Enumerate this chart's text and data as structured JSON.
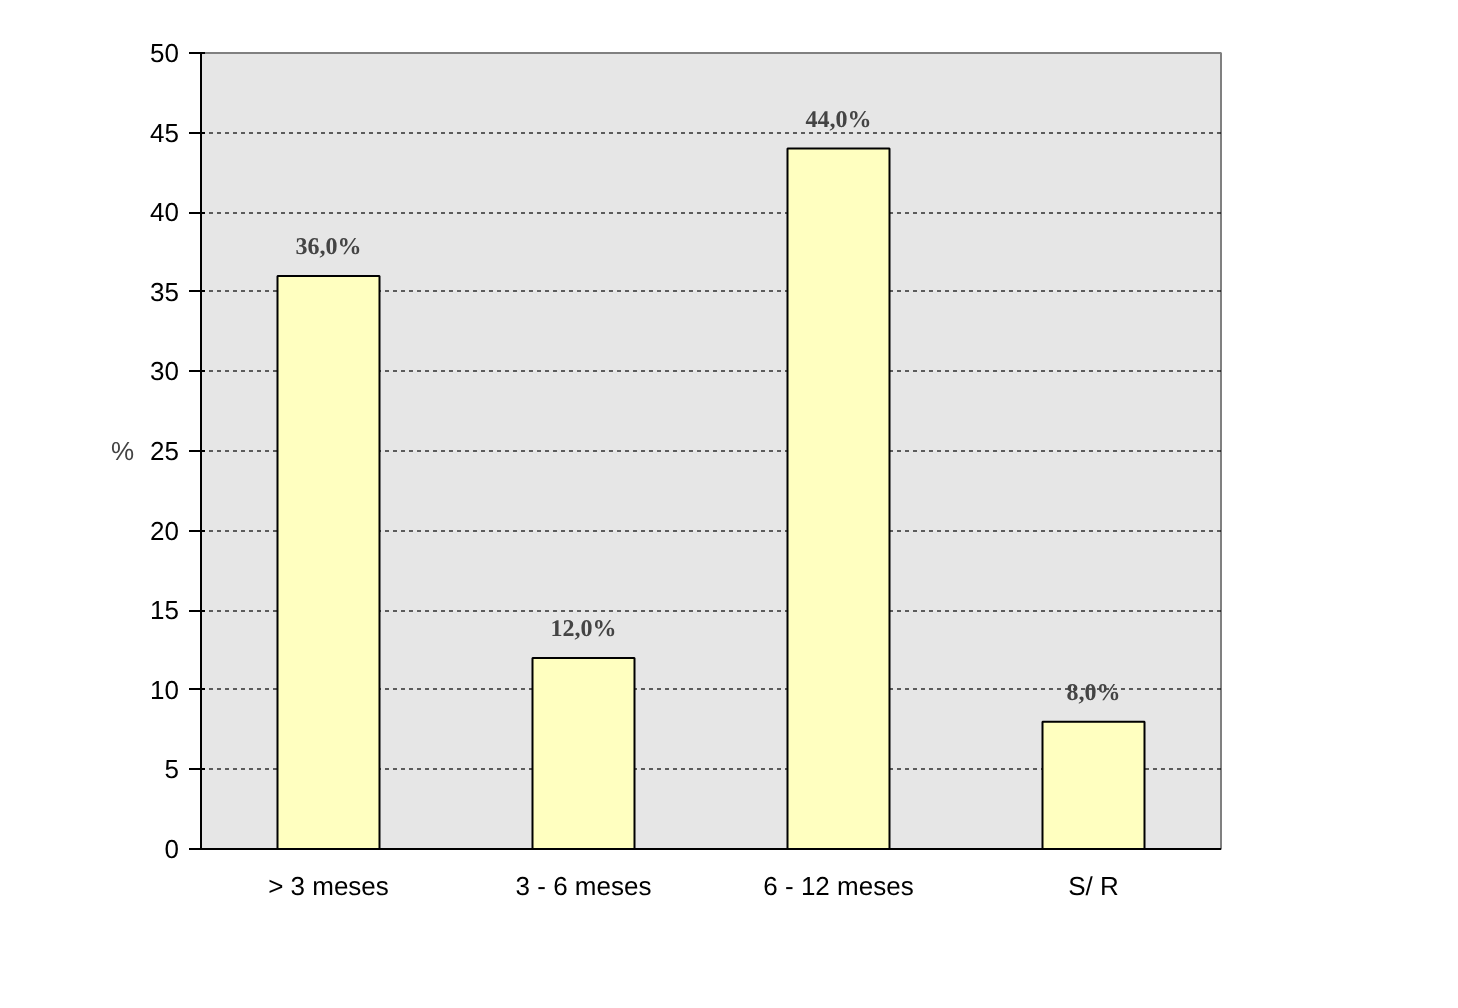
{
  "chart_data": {
    "type": "bar",
    "ylabel": "%",
    "categories": [
      "> 3 meses",
      "3 - 6 meses",
      "6 - 12 meses",
      "S/ R"
    ],
    "values": [
      36,
      12,
      44,
      8
    ],
    "value_labels": [
      "36,0%",
      "12,0%",
      "44,0%",
      "8,0%"
    ],
    "color": "#ffffc0",
    "ylim": [
      0,
      50
    ],
    "yticks": [
      0,
      5,
      10,
      15,
      20,
      25,
      30,
      35,
      40,
      45,
      50
    ],
    "grid": "y"
  }
}
